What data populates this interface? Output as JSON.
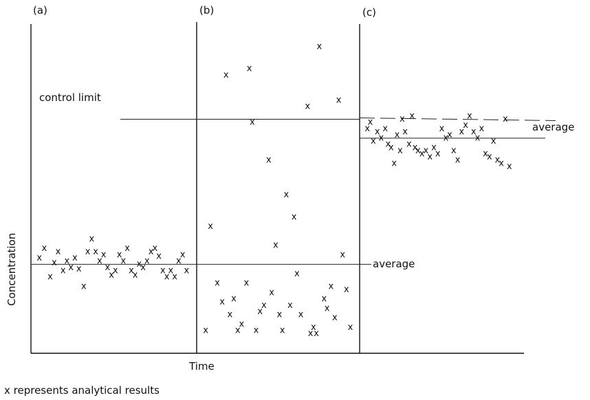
{
  "chart_data": {
    "type": "scatter",
    "xlabel": "Time",
    "ylabel": "Concentration",
    "caption": "x represents analytical results",
    "marker": "x",
    "control_limit_label": "control limit",
    "control_limit": 72,
    "ylim": [
      0,
      100
    ],
    "panels": [
      {
        "label": "(a)",
        "average_label": "",
        "average": 26,
        "points": [
          [
            0.05,
            28
          ],
          [
            0.1,
            31
          ],
          [
            0.16,
            22
          ],
          [
            0.2,
            26.5
          ],
          [
            0.24,
            30
          ],
          [
            0.29,
            24
          ],
          [
            0.33,
            27
          ],
          [
            0.37,
            25
          ],
          [
            0.41,
            28
          ],
          [
            0.45,
            24.5
          ],
          [
            0.5,
            19
          ],
          [
            0.54,
            30
          ],
          [
            0.58,
            34
          ],
          [
            0.62,
            30
          ],
          [
            0.66,
            27
          ],
          [
            0.7,
            29
          ],
          [
            0.74,
            25
          ],
          [
            0.78,
            22.5
          ],
          [
            0.82,
            24
          ],
          [
            0.86,
            29
          ],
          [
            0.9,
            27
          ],
          [
            0.94,
            31
          ],
          [
            0.98,
            24
          ],
          [
            1.02,
            22.5
          ],
          [
            1.06,
            26
          ],
          [
            1.1,
            25
          ],
          [
            1.14,
            27
          ],
          [
            1.18,
            30
          ],
          [
            1.22,
            31
          ],
          [
            1.26,
            28.5
          ],
          [
            1.3,
            24
          ],
          [
            1.34,
            22
          ],
          [
            1.38,
            24
          ],
          [
            1.42,
            22
          ],
          [
            1.46,
            27
          ],
          [
            1.5,
            29
          ],
          [
            1.54,
            24
          ]
        ]
      },
      {
        "label": "(b)",
        "average_label": "average",
        "average": 26,
        "points": [
          [
            0.05,
            5
          ],
          [
            0.1,
            38
          ],
          [
            0.17,
            20
          ],
          [
            0.22,
            14
          ],
          [
            0.26,
            86
          ],
          [
            0.3,
            10
          ],
          [
            0.34,
            15
          ],
          [
            0.38,
            5
          ],
          [
            0.42,
            7
          ],
          [
            0.47,
            20
          ],
          [
            0.5,
            88
          ],
          [
            0.53,
            71
          ],
          [
            0.57,
            5
          ],
          [
            0.61,
            11
          ],
          [
            0.65,
            13
          ],
          [
            0.7,
            59
          ],
          [
            0.73,
            17
          ],
          [
            0.77,
            32
          ],
          [
            0.81,
            10
          ],
          [
            0.84,
            5
          ],
          [
            0.88,
            48
          ],
          [
            0.92,
            13
          ],
          [
            0.96,
            41
          ],
          [
            0.99,
            23
          ],
          [
            1.03,
            10
          ],
          [
            1.1,
            76
          ],
          [
            1.13,
            4
          ],
          [
            1.16,
            6
          ],
          [
            1.19,
            4
          ],
          [
            1.22,
            95
          ],
          [
            1.27,
            15
          ],
          [
            1.3,
            12
          ],
          [
            1.34,
            19
          ],
          [
            1.38,
            9
          ],
          [
            1.42,
            78
          ],
          [
            1.46,
            29
          ],
          [
            1.5,
            18
          ],
          [
            1.54,
            6
          ]
        ]
      },
      {
        "label": "(c)",
        "average_label": "average",
        "average": 66,
        "points": [
          [
            0.05,
            69
          ],
          [
            0.08,
            71
          ],
          [
            0.11,
            65
          ],
          [
            0.15,
            68
          ],
          [
            0.19,
            66
          ],
          [
            0.23,
            69
          ],
          [
            0.26,
            64
          ],
          [
            0.29,
            63
          ],
          [
            0.32,
            58
          ],
          [
            0.35,
            67
          ],
          [
            0.38,
            62
          ],
          [
            0.4,
            72
          ],
          [
            0.43,
            68
          ],
          [
            0.47,
            64
          ],
          [
            0.5,
            73
          ],
          [
            0.53,
            63
          ],
          [
            0.56,
            62
          ],
          [
            0.6,
            61
          ],
          [
            0.64,
            62
          ],
          [
            0.68,
            60
          ],
          [
            0.72,
            63
          ],
          [
            0.76,
            61
          ],
          [
            0.8,
            69
          ],
          [
            0.84,
            66
          ],
          [
            0.88,
            67
          ],
          [
            0.92,
            62
          ],
          [
            0.96,
            59
          ],
          [
            1.0,
            68
          ],
          [
            1.04,
            70
          ],
          [
            1.08,
            73
          ],
          [
            1.12,
            68
          ],
          [
            1.16,
            66
          ],
          [
            1.2,
            69
          ],
          [
            1.24,
            61
          ],
          [
            1.28,
            60
          ],
          [
            1.32,
            65
          ],
          [
            1.36,
            59
          ],
          [
            1.4,
            58
          ],
          [
            1.44,
            72
          ],
          [
            1.48,
            57
          ]
        ]
      }
    ]
  }
}
